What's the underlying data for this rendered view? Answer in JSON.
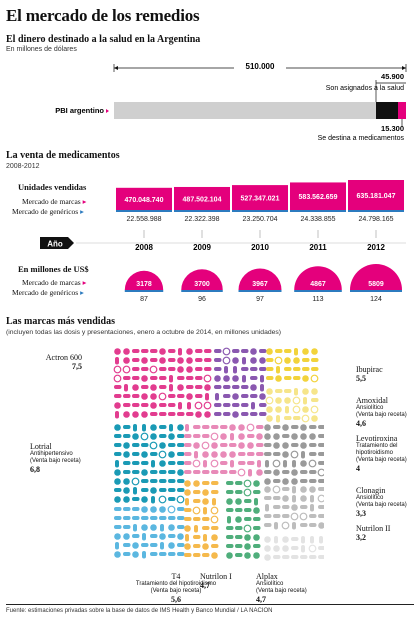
{
  "title": "El mercado de los remedios",
  "gdp": {
    "heading": "El dinero destinado a la salud en la Argentina",
    "unit_note": "En millones de dólares",
    "bar_label": "PBI argentino",
    "total_label": "510.000",
    "health_label": "45.900",
    "health_note": "Son asignados a la salud",
    "drugs_label": "15.300",
    "drugs_note": "Se destina a medicamentos"
  },
  "sales": {
    "heading": "La venta de medicamentos",
    "period": "2008-2012",
    "units_heading": "Unidades vendidas",
    "brands_label": "Mercado de marcas",
    "generics_label": "Mercado de genéricos",
    "year_label": "Año",
    "usd_heading": "En millones de US$",
    "brands_label2": "Mercado de marcas",
    "generics_label2": "Mercado de genéricos"
  },
  "brands": {
    "heading": "Las marcas más vendidas",
    "subheading": "(incluyen todas las dosis y presentaciones, enero a octubre de 2014, en millones unidades)",
    "actron": {
      "name": "Actron 600",
      "value": "7,5"
    },
    "ibupirac": {
      "name": "Ibupirac",
      "value": "5,5"
    },
    "amoxidal": {
      "name": "Amoxidal",
      "desc1": "Ansiolítico",
      "desc2": "(Venta bajo receta)",
      "value": "4,6"
    },
    "levotiroxina": {
      "name": "Levotiroxina",
      "desc1": "Tratamiento del",
      "desc2": "hipotiroidismo",
      "desc3": "(Venta bajo receta)",
      "value": "4"
    },
    "clonagin": {
      "name": "Clonagin",
      "desc1": "Ansiolítico",
      "desc2": "(Venta bajo receta)",
      "value": "3,3"
    },
    "nutrilion2": {
      "name": "Nutrilon II",
      "value": "3,2"
    },
    "lotrial": {
      "name": "Lotrial",
      "desc1": "Antihipertensivo",
      "desc2": "(Venta bajo receta)",
      "value": "6,8"
    },
    "t4": {
      "name": "T4",
      "desc1": "Tratamiento del hipotiroidismo",
      "desc2": "(Venta bajo receta)",
      "value": "5,6"
    },
    "nutrilon1": {
      "name": "Nutrilon I",
      "value": "4,7"
    },
    "alplax": {
      "name": "Alplax",
      "desc1": "Ansiolítico",
      "desc2": "(Venta bajo receta)",
      "value": "4,7"
    }
  },
  "footer": "Fuente: estimaciones privadas sobre la base de datos de IMS Health y Banco Mundial / LA NACION",
  "colors": {
    "magenta": "#e4007c",
    "blue": "#2c7bbf",
    "grey": "#cfcfcf",
    "dark": "#111111"
  },
  "chart_data": [
    {
      "type": "bar",
      "title": "El dinero destinado a la salud en la Argentina",
      "ylabel": "En millones de dólares",
      "categories": [
        "PBI argentino",
        "Son asignados a la salud",
        "Se destina a medicamentos"
      ],
      "values": [
        510000,
        45900,
        15300
      ]
    },
    {
      "type": "bar",
      "title": "Unidades vendidas",
      "categories": [
        "2008",
        "2009",
        "2010",
        "2011",
        "2012"
      ],
      "series": [
        {
          "name": "Mercado de marcas",
          "values": [
            470048740,
            487502104,
            527347021,
            583562659,
            635181047
          ],
          "labels": [
            "470.048.740",
            "487.502.104",
            "527.347.021",
            "583.562.659",
            "635.181.047"
          ]
        },
        {
          "name": "Mercado de genéricos",
          "values": [
            22558988,
            22322398,
            23250704,
            24338855,
            24798165
          ],
          "labels": [
            "22.558.988",
            "22.322.398",
            "23.250.704",
            "24.338.855",
            "24.798.165"
          ]
        }
      ]
    },
    {
      "type": "bar",
      "title": "En millones de US$",
      "categories": [
        "2008",
        "2009",
        "2010",
        "2011",
        "2012"
      ],
      "series": [
        {
          "name": "Mercado de marcas",
          "values": [
            3178,
            3700,
            3967,
            4867,
            5809
          ]
        },
        {
          "name": "Mercado de genéricos",
          "values": [
            87,
            96,
            97,
            113,
            124
          ]
        }
      ]
    },
    {
      "type": "treemap",
      "title": "Las marcas más vendidas",
      "categories": [
        "Actron 600",
        "Lotrial",
        "T4",
        "Ibupirac",
        "Nutrilon I",
        "Alplax",
        "Amoxidal",
        "Levotiroxina",
        "Clonagin",
        "Nutrilon II"
      ],
      "values": [
        7.5,
        6.8,
        5.6,
        5.5,
        4.7,
        4.7,
        4.6,
        4.0,
        3.3,
        3.2
      ]
    }
  ]
}
